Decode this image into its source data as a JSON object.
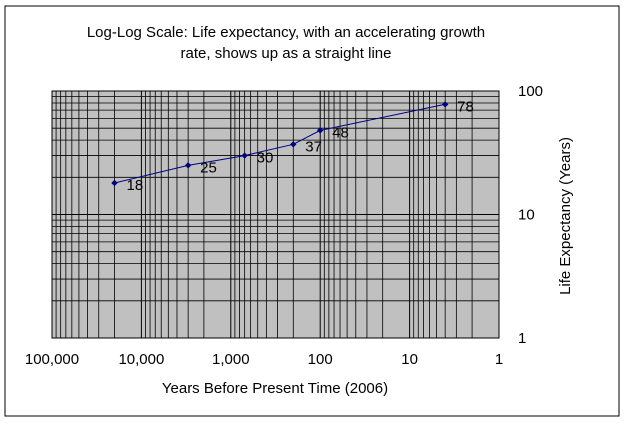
{
  "chart_data": {
    "type": "line",
    "title_lines": [
      "Log-Log Scale: Life expectancy, with an accelerating growth",
      "rate, shows up as a straight line"
    ],
    "xlabel": "Years Before Present Time (2006)",
    "ylabel": "Life Expectancy (Years)",
    "x_scale": "log",
    "y_scale": "log",
    "x_reversed": true,
    "xlim": [
      100000,
      1
    ],
    "ylim": [
      1,
      100
    ],
    "x_ticks": [
      {
        "value": 100000,
        "label": "100,000"
      },
      {
        "value": 10000,
        "label": "10,000"
      },
      {
        "value": 1000,
        "label": "1,000"
      },
      {
        "value": 100,
        "label": "100"
      },
      {
        "value": 10,
        "label": "10"
      },
      {
        "value": 1,
        "label": "1"
      }
    ],
    "y_ticks": [
      {
        "value": 100,
        "label": "100"
      },
      {
        "value": 10,
        "label": "10"
      },
      {
        "value": 1,
        "label": "1"
      }
    ],
    "grid": true,
    "colors": {
      "plot_background": "#c0c0c0",
      "gridline": "#000000",
      "series": "#000080"
    },
    "series": [
      {
        "points": [
          {
            "x": 20000,
            "y": 18,
            "label": "18"
          },
          {
            "x": 3000,
            "y": 25,
            "label": "25"
          },
          {
            "x": 700,
            "y": 30,
            "label": "30"
          },
          {
            "x": 200,
            "y": 37,
            "label": "37"
          },
          {
            "x": 100,
            "y": 48,
            "label": "48"
          },
          {
            "x": 4,
            "y": 78,
            "label": "78"
          }
        ]
      }
    ]
  }
}
